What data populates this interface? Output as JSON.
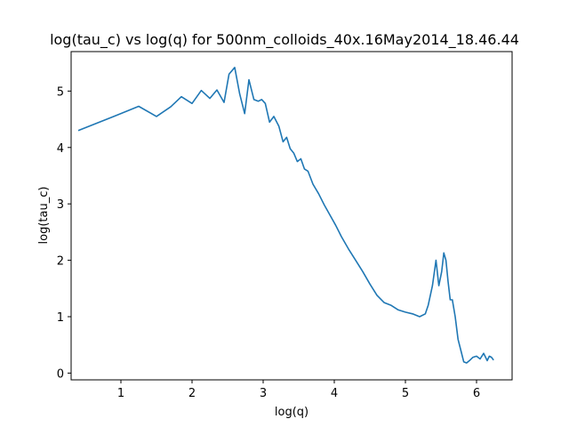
{
  "chart_data": {
    "type": "line",
    "title": "log(tau_c) vs log(q) for 500nm_colloids_40x.16May2014_18.46.44",
    "xlabel": "log(q)",
    "ylabel": "log(tau_c)",
    "xlim": [
      0.3,
      6.5
    ],
    "ylim": [
      -0.12,
      5.7
    ],
    "xticks": [
      1,
      2,
      3,
      4,
      5,
      6
    ],
    "yticks": [
      0,
      1,
      2,
      3,
      4,
      5
    ],
    "grid": false,
    "line_color": "#1f77b4",
    "series": [
      {
        "x": [
          0.4,
          0.9,
          1.25,
          1.5,
          1.7,
          1.85,
          2.0,
          2.13,
          2.25,
          2.35,
          2.45,
          2.52,
          2.6,
          2.67,
          2.74,
          2.8,
          2.87,
          2.93,
          2.98,
          3.03,
          3.09,
          3.15,
          3.22,
          3.28,
          3.33,
          3.38,
          3.43,
          3.48,
          3.53,
          3.58,
          3.63,
          3.7,
          3.78,
          3.86,
          3.94,
          4.02,
          4.1,
          4.2,
          4.3,
          4.4,
          4.5,
          4.6,
          4.7,
          4.8,
          4.9,
          5.0,
          5.1,
          5.2,
          5.28,
          5.32,
          5.38,
          5.43,
          5.47,
          5.51,
          5.54,
          5.57,
          5.6,
          5.63,
          5.66,
          5.7,
          5.74,
          5.78,
          5.82,
          5.86,
          5.9,
          5.95,
          6.0,
          6.05,
          6.1,
          6.15,
          6.18,
          6.21,
          6.24
        ],
        "y": [
          4.3,
          4.55,
          4.73,
          4.55,
          4.72,
          4.9,
          4.78,
          5.01,
          4.87,
          5.02,
          4.8,
          5.3,
          5.42,
          4.95,
          4.6,
          5.2,
          4.85,
          4.82,
          4.85,
          4.78,
          4.45,
          4.55,
          4.38,
          4.1,
          4.18,
          3.98,
          3.9,
          3.75,
          3.8,
          3.62,
          3.58,
          3.35,
          3.18,
          2.98,
          2.8,
          2.62,
          2.42,
          2.2,
          2.0,
          1.8,
          1.58,
          1.38,
          1.25,
          1.2,
          1.12,
          1.08,
          1.05,
          1.0,
          1.05,
          1.2,
          1.55,
          2.0,
          1.55,
          1.8,
          2.13,
          2.0,
          1.62,
          1.3,
          1.3,
          1.0,
          0.6,
          0.4,
          0.2,
          0.18,
          0.22,
          0.28,
          0.3,
          0.25,
          0.35,
          0.22,
          0.3,
          0.28,
          0.23
        ]
      }
    ]
  }
}
